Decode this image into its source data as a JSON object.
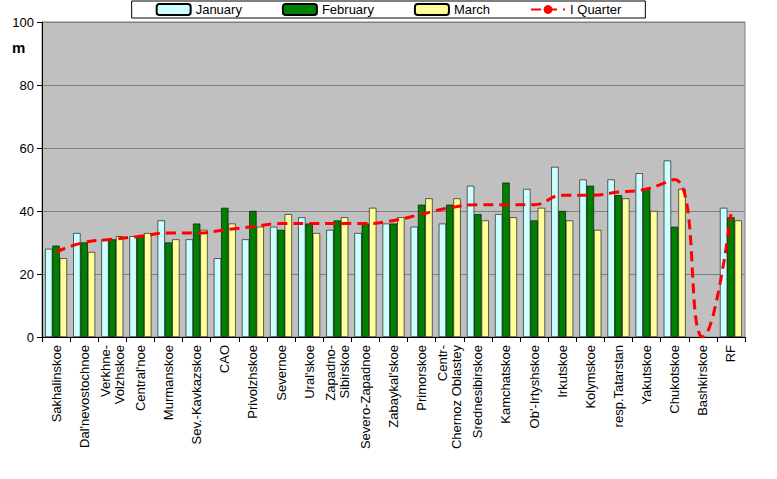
{
  "chart_data": {
    "type": "bar",
    "y_label": "m",
    "categories": [
      "Sakhalinskoe",
      "Dal'nevostochnoe",
      "Verkhne-\nVolzhskoe",
      "Central'noe",
      "Murmanskoe",
      "Sev.-Kavkazskoe",
      "CAO",
      "Privolzhskoe",
      "Severnoe",
      "Ural'skoe",
      "Zapadno-\nSibirskoe",
      "Severo-Zapadnoe",
      "Zabaykal'skoe",
      "Primorskoe",
      "Centr-\nChernoz Oblastey",
      "Srednesibirskoe",
      "Kamchatskoe",
      "Ob'-Irtyshskoe",
      "Irkutskoe",
      "Kolymskoe",
      "resp.Tatarstan",
      "Yakutskoe",
      "Chukotskoe",
      "Bashkirskoe",
      "RF"
    ],
    "series": [
      {
        "name": "January",
        "type": "bar",
        "color": "#ccffff",
        "values": [
          28,
          33,
          31,
          32,
          37,
          31,
          25,
          31,
          35,
          38,
          34,
          33,
          36,
          35,
          36,
          48,
          39,
          47,
          54,
          50,
          50,
          52,
          56,
          null,
          41
        ]
      },
      {
        "name": "February",
        "type": "bar",
        "color": "#008000",
        "values": [
          29,
          30,
          31,
          32,
          30,
          36,
          41,
          40,
          34,
          36,
          37,
          36,
          36,
          42,
          42,
          39,
          49,
          37,
          40,
          48,
          45,
          47,
          35,
          null,
          38
        ]
      },
      {
        "name": "March",
        "type": "bar",
        "color": "#ffff99",
        "values": [
          25,
          27,
          32,
          33,
          31,
          34,
          36,
          35,
          39,
          33,
          38,
          41,
          38,
          44,
          44,
          37,
          38,
          41,
          37,
          34,
          44,
          40,
          47,
          null,
          37
        ]
      },
      {
        "name": "I Quarter",
        "type": "line",
        "color": "#ff0000",
        "line_style": "dashed",
        "values": [
          27,
          30,
          31,
          32,
          33,
          33,
          34,
          35,
          36,
          36,
          36,
          36,
          37,
          39,
          41,
          42,
          42,
          42,
          45,
          45,
          46,
          47,
          50,
          0,
          39
        ]
      }
    ],
    "ylim": [
      0,
      100
    ],
    "yticks": [
      0,
      20,
      40,
      60,
      80,
      100
    ],
    "grid": true,
    "legend": "top"
  }
}
